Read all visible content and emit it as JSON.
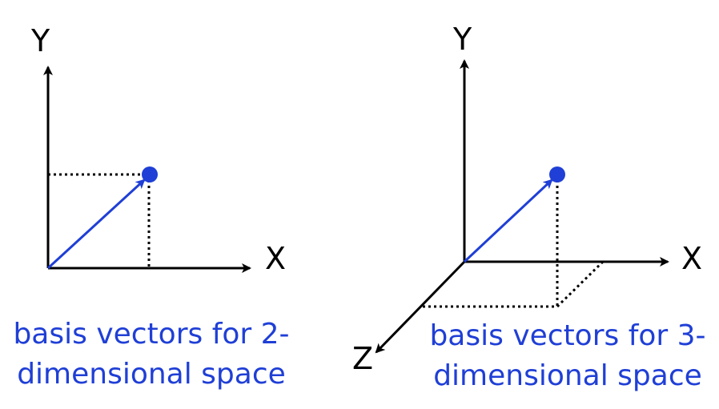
{
  "diagram_2d": {
    "x_label": "X",
    "y_label": "Y",
    "caption_line1": "basis vectors for 2-",
    "caption_line2": "dimensional space"
  },
  "diagram_3d": {
    "x_label": "X",
    "y_label": "Y",
    "z_label": "Z",
    "caption_line1": "basis vectors for 3-",
    "caption_line2": "dimensional space"
  },
  "colors": {
    "axis": "#000000",
    "vector": "#1f3fd6",
    "caption": "#1f3fd6"
  }
}
